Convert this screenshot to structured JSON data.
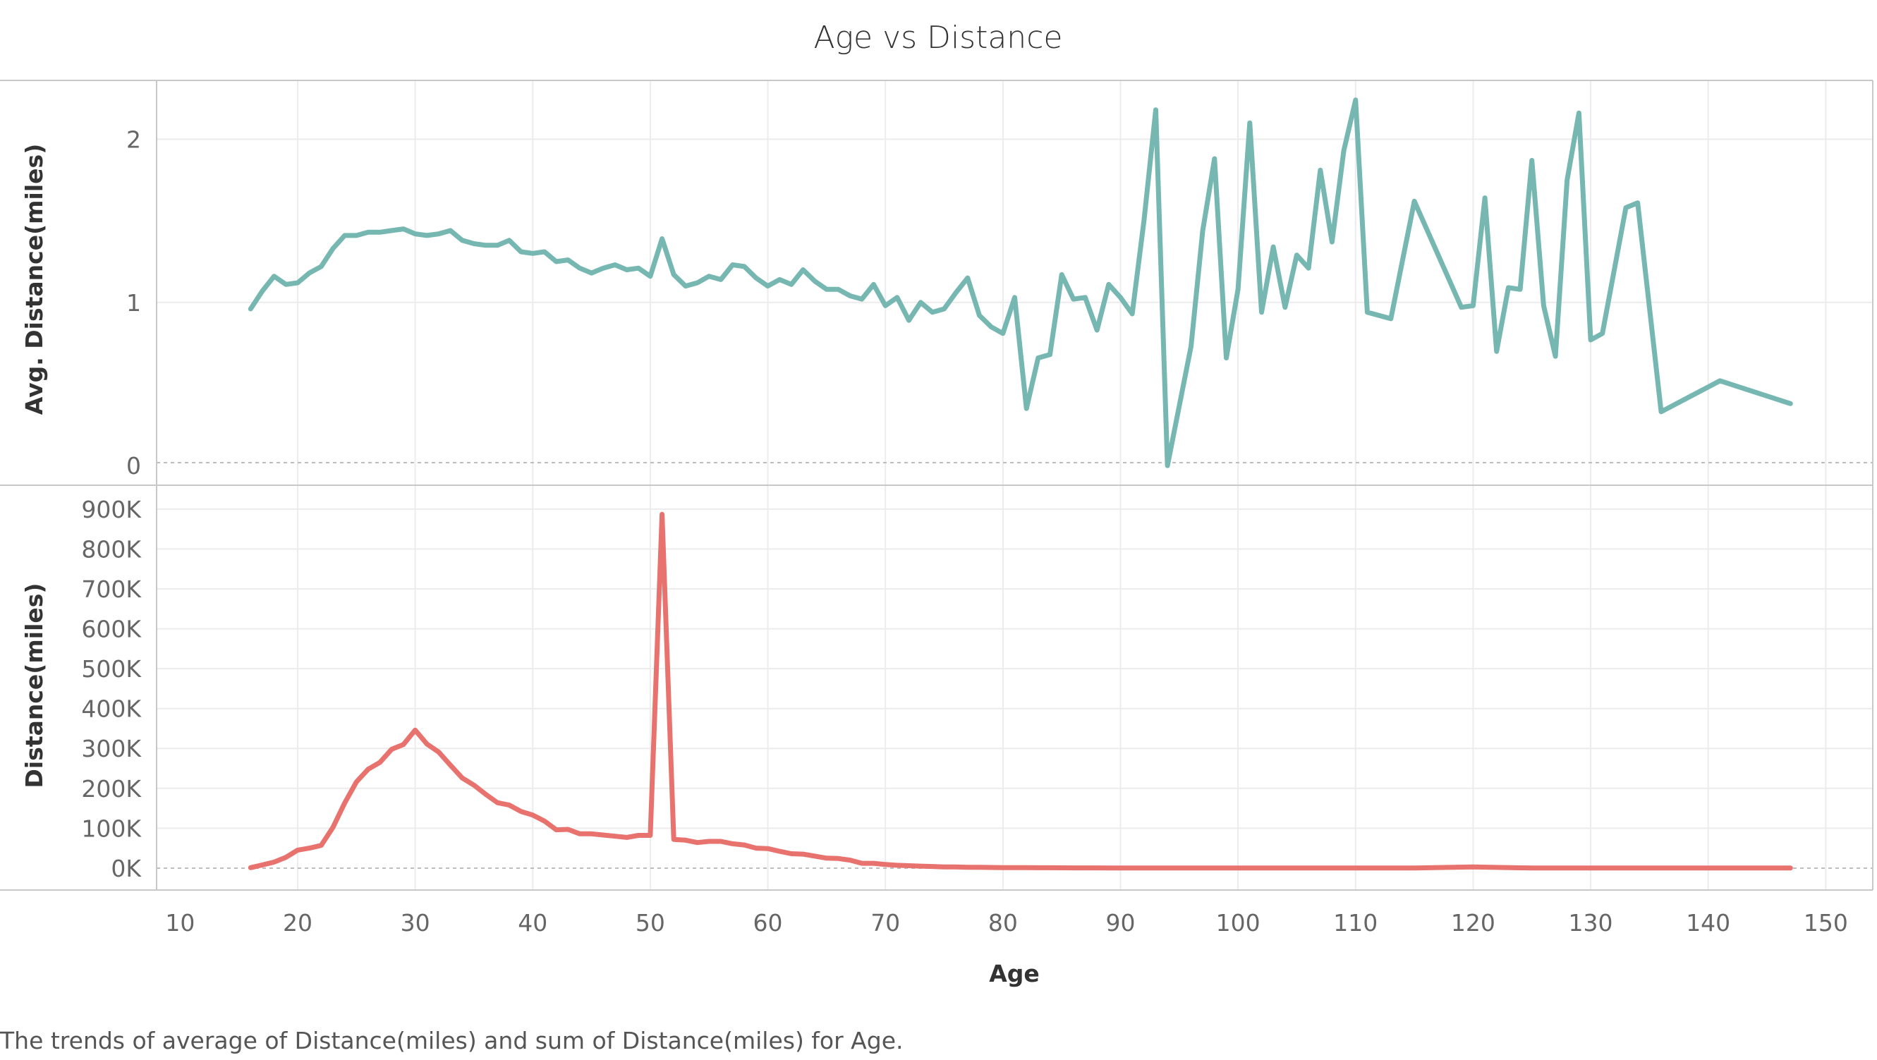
{
  "chart_data": {
    "type": "line",
    "title": "Age vs Distance",
    "caption": "The trends of average of Distance(miles) and sum of Distance(miles) for Age.",
    "xlabel": "Age",
    "xlim": [
      8,
      154
    ],
    "x_ticks": [
      10,
      20,
      30,
      40,
      50,
      60,
      70,
      80,
      90,
      100,
      110,
      120,
      130,
      140,
      150
    ],
    "x_tick_labels": [
      "10",
      "20",
      "30",
      "40",
      "50",
      "60",
      "70",
      "80",
      "90",
      "100",
      "110",
      "120",
      "130",
      "140",
      "150"
    ],
    "grid": true,
    "panels": [
      {
        "ylabel": "Avg. Distance(miles)",
        "ylim": [
          -0.12,
          2.36
        ],
        "y_ticks": [
          0,
          1,
          2
        ],
        "y_tick_labels": [
          "0",
          "1",
          "2"
        ],
        "series": [
          {
            "color": "#76b7b2",
            "x": [
              16,
              17,
              18,
              19,
              20,
              21,
              22,
              23,
              24,
              25,
              26,
              27,
              28,
              29,
              30,
              31,
              32,
              33,
              34,
              35,
              36,
              37,
              38,
              39,
              40,
              41,
              42,
              43,
              44,
              45,
              46,
              47,
              48,
              49,
              50,
              51,
              52,
              53,
              54,
              55,
              56,
              57,
              58,
              59,
              60,
              61,
              62,
              63,
              64,
              65,
              66,
              67,
              68,
              69,
              70,
              71,
              72,
              73,
              74,
              75,
              76,
              77,
              78,
              79,
              80,
              81,
              82,
              83,
              84,
              85,
              86,
              87,
              88,
              89,
              90,
              91,
              92,
              93,
              94,
              96,
              97,
              98,
              99,
              100,
              101,
              102,
              103,
              104,
              105,
              106,
              107,
              108,
              109,
              110,
              111,
              113,
              115,
              119,
              120,
              121,
              122,
              123,
              124,
              125,
              126,
              127,
              128,
              129,
              130,
              131,
              133,
              134,
              136,
              141,
              147
            ],
            "y": [
              0.96,
              1.07,
              1.16,
              1.11,
              1.12,
              1.18,
              1.22,
              1.33,
              1.41,
              1.41,
              1.43,
              1.43,
              1.44,
              1.45,
              1.42,
              1.41,
              1.42,
              1.44,
              1.38,
              1.36,
              1.35,
              1.35,
              1.38,
              1.31,
              1.3,
              1.31,
              1.25,
              1.26,
              1.21,
              1.18,
              1.21,
              1.23,
              1.2,
              1.21,
              1.16,
              1.39,
              1.17,
              1.1,
              1.12,
              1.16,
              1.14,
              1.23,
              1.22,
              1.15,
              1.1,
              1.14,
              1.11,
              1.2,
              1.13,
              1.08,
              1.08,
              1.04,
              1.02,
              1.11,
              0.98,
              1.03,
              0.89,
              1.0,
              0.94,
              0.96,
              1.06,
              1.15,
              0.92,
              0.85,
              0.81,
              1.03,
              0.35,
              0.66,
              0.68,
              1.17,
              1.02,
              1.03,
              0.83,
              1.11,
              1.03,
              0.93,
              1.5,
              2.18,
              0.0,
              0.73,
              1.44,
              1.88,
              0.66,
              1.08,
              2.1,
              0.94,
              1.34,
              0.97,
              1.29,
              1.21,
              1.81,
              1.37,
              1.93,
              2.24,
              0.94,
              0.9,
              1.62,
              0.97,
              0.98,
              1.64,
              0.7,
              1.09,
              1.08,
              1.87,
              0.98,
              0.67,
              1.75,
              2.16,
              0.77,
              0.81,
              1.58,
              1.61,
              0.33,
              0.52,
              0.38
            ]
          }
        ]
      },
      {
        "ylabel": "Distance(miles)",
        "ylim": [
          -55000,
          960000
        ],
        "y_ticks": [
          0,
          100000,
          200000,
          300000,
          400000,
          500000,
          600000,
          700000,
          800000,
          900000
        ],
        "y_tick_labels": [
          "0K",
          "100K",
          "200K",
          "300K",
          "400K",
          "500K",
          "600K",
          "700K",
          "800K",
          "900K"
        ],
        "series": [
          {
            "color": "#e8726e",
            "x": [
              16,
              17,
              18,
              19,
              20,
              21,
              22,
              23,
              24,
              25,
              26,
              27,
              28,
              29,
              30,
              31,
              32,
              33,
              34,
              35,
              36,
              37,
              38,
              39,
              40,
              41,
              42,
              43,
              44,
              45,
              46,
              47,
              48,
              49,
              50,
              51,
              52,
              53,
              54,
              55,
              56,
              57,
              58,
              59,
              60,
              61,
              62,
              63,
              64,
              65,
              66,
              67,
              68,
              69,
              70,
              71,
              72,
              73,
              74,
              75,
              76,
              77,
              78,
              79,
              80,
              81,
              82,
              83,
              84,
              85,
              86,
              87,
              88,
              89,
              90,
              95,
              100,
              105,
              110,
              115,
              120,
              125,
              130,
              135,
              140,
              147
            ],
            "y": [
              1000,
              8000,
              15000,
              27000,
              45000,
              50000,
              57000,
              102000,
              163000,
              216000,
              248000,
              265000,
              298000,
              310000,
              346000,
              311000,
              291000,
              258000,
              226000,
              208000,
              185000,
              164000,
              158000,
              142000,
              133000,
              118000,
              96000,
              97000,
              86000,
              86000,
              83000,
              80000,
              77000,
              82000,
              82000,
              887000,
              72000,
              70000,
              64000,
              67000,
              67000,
              61000,
              58000,
              50000,
              49000,
              42000,
              36000,
              35000,
              30000,
              25000,
              24000,
              20000,
              12000,
              12000,
              9000,
              7000,
              6000,
              5000,
              4000,
              3000,
              3000,
              2000,
              2000,
              1500,
              1200,
              1000,
              1000,
              800,
              800,
              700,
              600,
              500,
              500,
              400,
              400,
              300,
              300,
              300,
              200,
              200,
              3000,
              200,
              200,
              200,
              200,
              100
            ]
          }
        ]
      }
    ]
  }
}
